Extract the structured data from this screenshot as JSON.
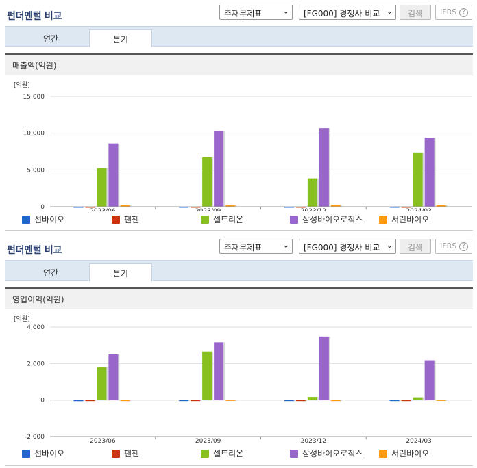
{
  "panels": [
    {
      "title": "펀더멘털 비교",
      "select1": "주재무제표",
      "select2": "[FG000] 경쟁사 비교",
      "search_label": "검색",
      "ifrs_label": "IFRS",
      "ifrs_help": "?",
      "tabs": [
        {
          "label": "연간",
          "active": false
        },
        {
          "label": "분기",
          "active": true
        }
      ],
      "section_title": "매출액(억원)",
      "unit_label": "[억원]"
    },
    {
      "title": "펀더멘털 비교",
      "select1": "주재무제표",
      "select2": "[FG000] 경쟁사 비교",
      "search_label": "검색",
      "ifrs_label": "IFRS",
      "ifrs_help": "?",
      "tabs": [
        {
          "label": "연간",
          "active": false
        },
        {
          "label": "분기",
          "active": true
        }
      ],
      "section_title": "영업이익(억원)",
      "unit_label": "[억원]"
    }
  ],
  "legend": [
    {
      "label": "선바이오",
      "color": "#2266cc"
    },
    {
      "label": "팬젠",
      "color": "#cc3311"
    },
    {
      "label": "셀트리온",
      "color": "#88c020"
    },
    {
      "label": "삼성바이오로직스",
      "color": "#9966cc"
    },
    {
      "label": "서린바이오",
      "color": "#ff9911"
    }
  ],
  "chart_data": [
    {
      "type": "bar",
      "title": "매출액(억원)",
      "ylabel": "[억원]",
      "categories": [
        "2023/06",
        "2023/09",
        "2023/12",
        "2024/03"
      ],
      "ylim": [
        0,
        15000
      ],
      "yticks": [
        "0",
        "5,000",
        "10,000",
        "15,000"
      ],
      "ytick_values": [
        0,
        5000,
        10000,
        15000
      ],
      "series": [
        {
          "name": "선바이오",
          "values": [
            3,
            3,
            3,
            3
          ]
        },
        {
          "name": "팬젠",
          "values": [
            4,
            4,
            4,
            4
          ]
        },
        {
          "name": "셀트리온",
          "values": [
            5250,
            6720,
            3850,
            7370
          ]
        },
        {
          "name": "삼성바이오로직스",
          "values": [
            8600,
            10300,
            10700,
            9400
          ]
        },
        {
          "name": "서린바이오",
          "values": [
            200,
            180,
            250,
            200
          ]
        }
      ]
    },
    {
      "type": "bar",
      "title": "영업이익(억원)",
      "ylabel": "[억원]",
      "categories": [
        "2023/06",
        "2023/09",
        "2023/12",
        "2024/03"
      ],
      "ylim": [
        -2000,
        4000
      ],
      "yticks": [
        "-2,000",
        "0",
        "2,000",
        "4,000"
      ],
      "ytick_values": [
        -2000,
        0,
        2000,
        4000
      ],
      "series": [
        {
          "name": "선바이오",
          "values": [
            -60,
            -50,
            0,
            0
          ]
        },
        {
          "name": "팬젠",
          "values": [
            -10,
            -10,
            -10,
            -10
          ]
        },
        {
          "name": "셀트리온",
          "values": [
            1800,
            2660,
            170,
            150
          ]
        },
        {
          "name": "삼성바이오로직스",
          "values": [
            2500,
            3160,
            3480,
            2180
          ]
        },
        {
          "name": "서린바이오",
          "values": [
            -5,
            10,
            -5,
            10
          ]
        }
      ]
    }
  ]
}
